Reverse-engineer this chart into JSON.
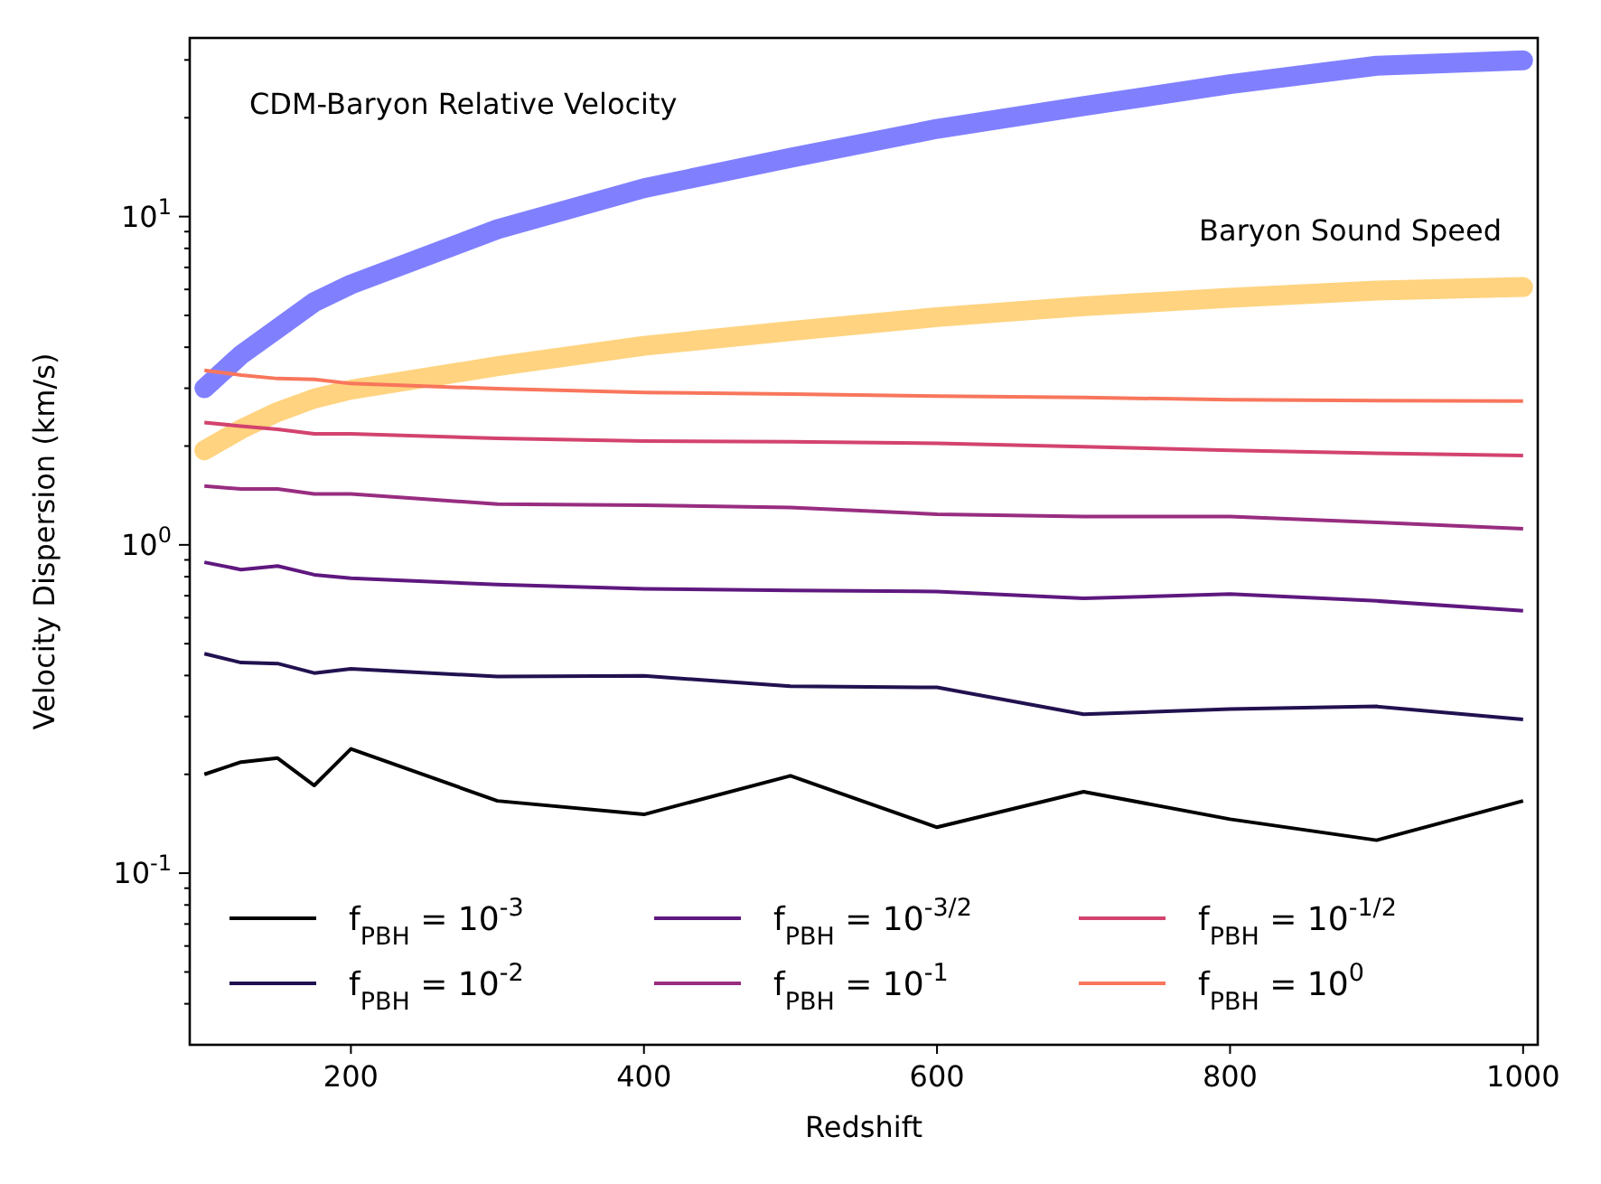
{
  "chart_data": {
    "type": "line",
    "xlabel": "Redshift",
    "ylabel": "Velocity Dispersion (km/s)",
    "log": "y",
    "xlim": [
      90,
      1010
    ],
    "ylim": [
      0.03,
      35
    ],
    "xticks": [
      200,
      400,
      600,
      800,
      1000
    ],
    "yticks": [
      {
        "value": 0.1,
        "label": "10$^{-1}$"
      },
      {
        "value": 1,
        "label": "10$^{0}$"
      },
      {
        "value": 10,
        "label": "10$^{1}$"
      },
      {
        "value": 0.04,
        "label": null
      },
      {
        "value": 0.05,
        "label": null
      },
      {
        "value": 0.06,
        "label": null
      },
      {
        "value": 0.07,
        "label": null
      },
      {
        "value": 0.08,
        "label": null
      },
      {
        "value": 0.09,
        "label": null
      },
      {
        "value": 0.2,
        "label": null
      },
      {
        "value": 0.3,
        "label": null
      },
      {
        "value": 0.4,
        "label": null
      },
      {
        "value": 0.5,
        "label": null
      },
      {
        "value": 0.6,
        "label": null
      },
      {
        "value": 0.7,
        "label": null
      },
      {
        "value": 0.8,
        "label": null
      },
      {
        "value": 0.9,
        "label": null
      },
      {
        "value": 2,
        "label": null
      },
      {
        "value": 3,
        "label": null
      },
      {
        "value": 4,
        "label": null
      },
      {
        "value": 5,
        "label": null
      },
      {
        "value": 6,
        "label": null
      },
      {
        "value": 7,
        "label": null
      },
      {
        "value": 8,
        "label": null
      },
      {
        "value": 9,
        "label": null
      },
      {
        "value": 20,
        "label": null
      },
      {
        "value": 30,
        "label": null
      }
    ],
    "x": [
      100,
      125,
      150,
      175,
      200,
      300,
      400,
      500,
      600,
      700,
      800,
      900,
      1000
    ],
    "legend": "bottom",
    "grid": false,
    "marker": "none",
    "line_style": "solid",
    "annotations": [
      "CDM-Baryon Relative Velocity",
      "Baryon Sound Speed"
    ],
    "series": [
      {
        "name": "f$_{PBH}$ = 10$^{-3}$",
        "color": "#000004",
        "values": [
          0.2,
          0.218,
          0.224,
          0.185,
          0.239,
          0.166,
          0.151,
          0.198,
          0.138,
          0.177,
          0.146,
          0.126,
          0.166
        ]
      },
      {
        "name": "f$_{PBH}$ = 10$^{-2}$",
        "color": "#221150",
        "values": [
          0.466,
          0.438,
          0.435,
          0.407,
          0.419,
          0.397,
          0.399,
          0.371,
          0.368,
          0.305,
          0.316,
          0.322,
          0.294
        ]
      },
      {
        "name": "f$_{PBH}$ = 10$^{-3/2}$",
        "color": "#5f187f",
        "values": [
          0.885,
          0.841,
          0.862,
          0.811,
          0.791,
          0.757,
          0.735,
          0.726,
          0.721,
          0.687,
          0.708,
          0.675,
          0.63
        ]
      },
      {
        "name": "f$_{PBH}$ = 10$^{-1}$",
        "color": "#982d80",
        "values": [
          1.51,
          1.48,
          1.48,
          1.43,
          1.43,
          1.33,
          1.32,
          1.3,
          1.24,
          1.22,
          1.22,
          1.17,
          1.12
        ]
      },
      {
        "name": "f$_{PBH}$ = 10$^{-1/2}$",
        "color": "#d3436e",
        "values": [
          2.36,
          2.3,
          2.25,
          2.18,
          2.18,
          2.11,
          2.07,
          2.06,
          2.04,
          1.99,
          1.94,
          1.9,
          1.87
        ]
      },
      {
        "name": "f$_{PBH}$ = 10$^{0}$",
        "color": "#f8765c",
        "values": [
          3.4,
          3.29,
          3.21,
          3.19,
          3.1,
          2.99,
          2.91,
          2.88,
          2.84,
          2.81,
          2.77,
          2.75,
          2.74
        ]
      },
      {
        "color": "#8080ff",
        "values": [
          3.0,
          3.79,
          4.56,
          5.49,
          6.21,
          9.15,
          12.2,
          15.1,
          18.5,
          21.7,
          25.3,
          28.8,
          29.9
        ]
      },
      {
        "color": "#ffd37f",
        "values": [
          1.94,
          2.25,
          2.54,
          2.79,
          2.97,
          3.5,
          4.04,
          4.48,
          4.94,
          5.33,
          5.66,
          5.95,
          6.1
        ]
      }
    ]
  }
}
